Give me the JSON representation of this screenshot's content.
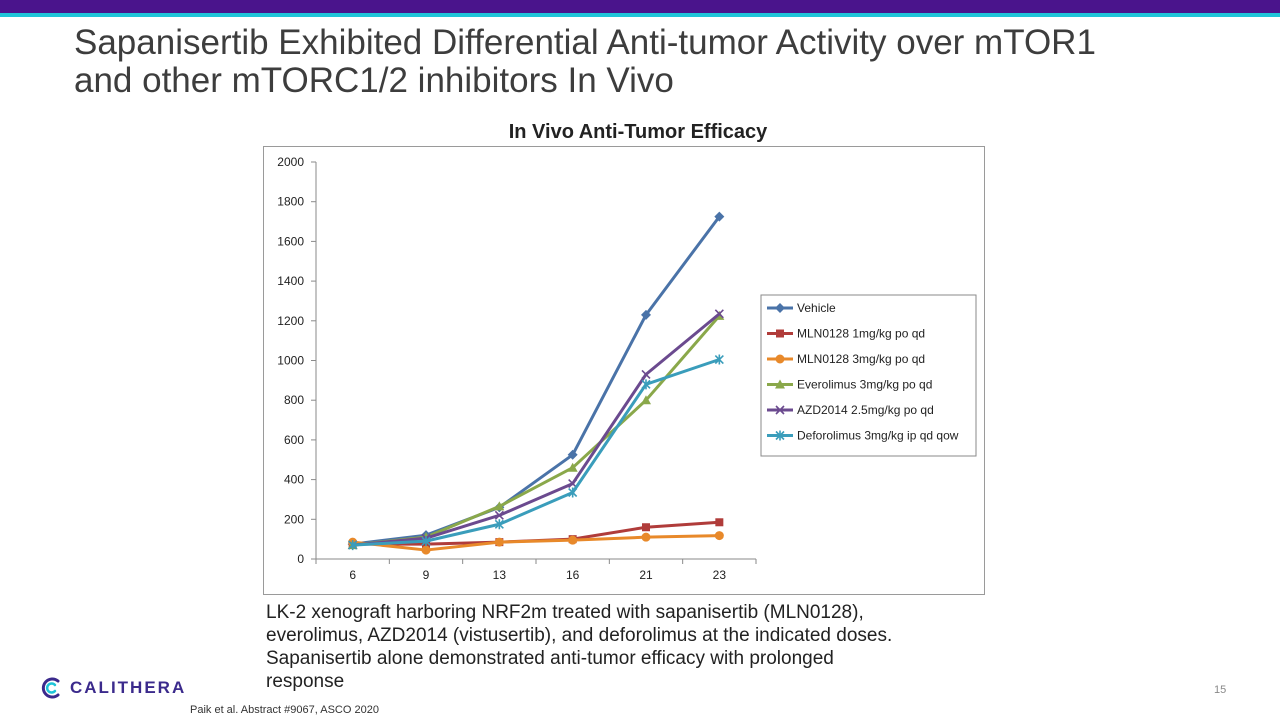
{
  "slide": {
    "title_line1": "Sapanisertib Exhibited Differential Anti-tumor Activity over mTOR1",
    "title_line2": "and other mTORC1/2 inhibitors In Vivo",
    "chart_heading": "In Vivo Anti-Tumor Efficacy",
    "caption_lines": [
      "LK-2 xenograft harboring NRF2m treated with sapanisertib (MLN0128),",
      "everolimus, AZD2014 (vistusertib), and deforolimus at the indicated doses.",
      "Sapanisertib alone demonstrated anti-tumor efficacy with prolonged",
      "response"
    ],
    "citation": "Paik et al. Abstract #9067, ASCO 2020",
    "page_number": "15",
    "logo_text": "CALITHERA",
    "logo_icon": "calithera-logo-icon"
  },
  "colors": {
    "top_bar": "#4a148c",
    "accent_bar": "#1fc4d8",
    "logo": "#3b2a8c"
  },
  "chart_data": {
    "type": "line",
    "title": "In Vivo Anti-Tumor Efficacy",
    "xlabel": "",
    "ylabel": "",
    "categories": [
      "6",
      "9",
      "13",
      "16",
      "21",
      "23"
    ],
    "ylim": [
      0,
      2000
    ],
    "yticks": [
      0,
      200,
      400,
      600,
      800,
      1000,
      1200,
      1400,
      1600,
      1800,
      2000
    ],
    "grid": false,
    "legend_position": "right",
    "series": [
      {
        "name": "Vehicle",
        "color": "#4a73a8",
        "marker": "diamond",
        "values": [
          75,
          120,
          260,
          525,
          1230,
          1725
        ]
      },
      {
        "name": "MLN0128 1mg/kg po qd",
        "color": "#b03c3a",
        "marker": "square",
        "values": [
          75,
          75,
          85,
          100,
          160,
          185
        ]
      },
      {
        "name": "MLN0128 3mg/kg po qd",
        "color": "#e8892a",
        "marker": "circle",
        "values": [
          85,
          45,
          85,
          95,
          110,
          118
        ]
      },
      {
        "name": "Everolimus 3mg/kg po qd",
        "color": "#8aa84a",
        "marker": "triangle",
        "values": [
          70,
          110,
          265,
          460,
          800,
          1225
        ]
      },
      {
        "name": "AZD2014 2.5mg/kg po qd",
        "color": "#6b4a8f",
        "marker": "x",
        "values": [
          70,
          105,
          220,
          380,
          930,
          1235
        ]
      },
      {
        "name": "Deforolimus 3mg/kg ip qd qow",
        "color": "#3a9dbb",
        "marker": "star",
        "values": [
          70,
          90,
          175,
          335,
          880,
          1005
        ]
      }
    ]
  }
}
